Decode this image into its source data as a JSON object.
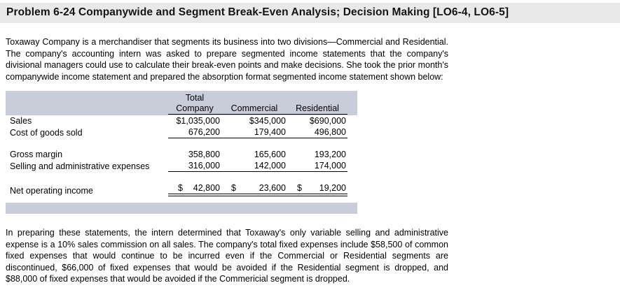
{
  "title": "Problem 6-24 Companywide and Segment Break-Even Analysis; Decision Making [LO6-4, LO6-5]",
  "intro": "Toxaway Company is a merchandiser that segments its business into two divisions—Commercial and Residential. The company's accounting intern was asked to prepare segmented income statements that the company's divisional managers could use to calculate their break-even points and make decisions. She took the prior month's companywide income statement and prepared the absorption format segmented income statement shown below:",
  "closing": "In preparing these statements, the intern determined that Toxaway's only variable selling and administrative expense is a 10% sales commission on all sales. The company's total fixed expenses include $58,500 of common fixed expenses that would continue to be incurred even if the Commercial or Residential segments are discontinued, $66,000 of fixed expenses that would be avoided if the Residential segment is dropped, and $88,000 of fixed expenses that would be avoided if the Commericial segment is dropped.",
  "table": {
    "header": {
      "col1_line1": "Total",
      "col1_line2": "Company",
      "col2": "Commercial",
      "col3": "Residential"
    },
    "rows": [
      {
        "label": "Sales",
        "values": [
          "$1,035,000",
          "$345,000",
          "$690,000"
        ]
      },
      {
        "label": "Cost of goods sold",
        "values": [
          "676,200",
          "179,400",
          "496,800"
        ]
      },
      {
        "label": "Gross margin",
        "values": [
          "358,800",
          "165,600",
          "193,200"
        ]
      },
      {
        "label": "Selling and administrative expenses",
        "values": [
          "316,000",
          "142,000",
          "174,000"
        ]
      },
      {
        "label": "Net operating income",
        "currency": "$",
        "values": [
          "42,800",
          "23,600",
          "19,200"
        ]
      }
    ]
  }
}
